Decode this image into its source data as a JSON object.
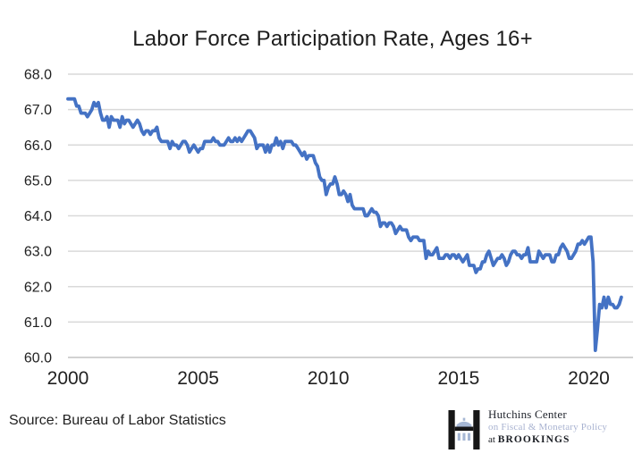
{
  "title": "Labor Force Participation Rate, Ages 16+",
  "source_note": "Source: Bureau of Labor Statistics",
  "logo": {
    "line1": "Hutchins Center",
    "line2": "on Fiscal & Monetary Policy",
    "line3_prefix": "at ",
    "line3_name": "BROOKINGS",
    "dark_color": "#1b1e24",
    "accent_color": "#a9b3d1"
  },
  "chart_data": {
    "type": "line",
    "title": "Labor Force Participation Rate, Ages 16+",
    "xlabel": "",
    "ylabel": "",
    "xlim": [
      2000,
      2021.7
    ],
    "ylim": [
      60.0,
      68.0
    ],
    "x_ticks": [
      "2000",
      "2005",
      "2010",
      "2015",
      "2020"
    ],
    "y_ticks": [
      "68.0",
      "67.0",
      "66.0",
      "65.0",
      "64.0",
      "63.0",
      "62.0",
      "61.0",
      "60.0"
    ],
    "grid": "horizontal",
    "gridline_color": "#d9d9d9",
    "axis_line_color": "#c4c4c4",
    "legend": "none",
    "series": [
      {
        "name": "Labor force participation rate, ages 16+ (percent, monthly)",
        "color": "#4472c4",
        "start_year": 2000,
        "frequency": "monthly",
        "values": [
          67.3,
          67.3,
          67.3,
          67.3,
          67.1,
          67.1,
          66.9,
          66.9,
          66.9,
          66.8,
          66.9,
          67.0,
          67.2,
          67.1,
          67.2,
          66.9,
          66.7,
          66.7,
          66.8,
          66.5,
          66.8,
          66.7,
          66.7,
          66.7,
          66.5,
          66.8,
          66.6,
          66.7,
          66.7,
          66.6,
          66.5,
          66.6,
          66.7,
          66.6,
          66.4,
          66.3,
          66.4,
          66.4,
          66.3,
          66.4,
          66.4,
          66.5,
          66.2,
          66.1,
          66.1,
          66.1,
          66.1,
          65.9,
          66.1,
          66.0,
          66.0,
          65.9,
          66.0,
          66.1,
          66.1,
          66.0,
          65.8,
          65.9,
          66.0,
          65.9,
          65.8,
          65.9,
          65.9,
          66.1,
          66.1,
          66.1,
          66.1,
          66.2,
          66.1,
          66.1,
          66.0,
          66.0,
          66.0,
          66.1,
          66.2,
          66.1,
          66.1,
          66.2,
          66.1,
          66.2,
          66.1,
          66.2,
          66.3,
          66.4,
          66.4,
          66.3,
          66.2,
          65.9,
          66.0,
          66.0,
          66.0,
          65.8,
          66.0,
          65.8,
          66.0,
          66.0,
          66.2,
          66.0,
          66.1,
          65.9,
          66.1,
          66.1,
          66.1,
          66.1,
          66.0,
          66.0,
          65.9,
          65.8,
          65.7,
          65.8,
          65.6,
          65.7,
          65.7,
          65.7,
          65.5,
          65.4,
          65.1,
          65.0,
          65.0,
          64.6,
          64.8,
          64.9,
          64.9,
          65.1,
          64.9,
          64.6,
          64.6,
          64.7,
          64.6,
          64.4,
          64.6,
          64.3,
          64.2,
          64.2,
          64.2,
          64.2,
          64.2,
          64.0,
          64.0,
          64.1,
          64.2,
          64.1,
          64.1,
          64.0,
          63.7,
          63.8,
          63.8,
          63.7,
          63.8,
          63.8,
          63.7,
          63.5,
          63.6,
          63.7,
          63.6,
          63.6,
          63.6,
          63.4,
          63.3,
          63.4,
          63.4,
          63.4,
          63.3,
          63.3,
          63.3,
          62.8,
          63.0,
          62.9,
          62.9,
          63.0,
          63.1,
          62.8,
          62.8,
          62.8,
          62.9,
          62.9,
          62.8,
          62.9,
          62.9,
          62.8,
          62.9,
          62.8,
          62.7,
          62.8,
          62.9,
          62.6,
          62.6,
          62.6,
          62.4,
          62.5,
          62.5,
          62.7,
          62.7,
          62.9,
          63.0,
          62.8,
          62.6,
          62.7,
          62.8,
          62.8,
          62.9,
          62.8,
          62.6,
          62.7,
          62.9,
          63.0,
          63.0,
          62.9,
          62.9,
          62.8,
          62.9,
          62.9,
          63.1,
          62.7,
          62.7,
          62.7,
          62.7,
          63.0,
          62.9,
          62.8,
          62.9,
          62.9,
          62.9,
          62.7,
          62.7,
          62.9,
          62.9,
          63.1,
          63.2,
          63.1,
          63.0,
          62.8,
          62.8,
          62.9,
          63.0,
          63.2,
          63.2,
          63.3,
          63.2,
          63.3,
          63.4,
          63.4,
          62.7,
          60.2,
          60.8,
          61.5,
          61.4,
          61.7,
          61.4,
          61.7,
          61.5,
          61.5,
          61.4,
          61.4,
          61.5,
          61.7
        ]
      }
    ]
  }
}
